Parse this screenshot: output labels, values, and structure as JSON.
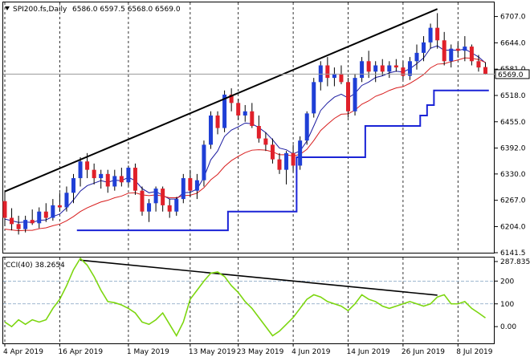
{
  "header": {
    "symbol": "SPI200.fs,Daily",
    "ohlc": "6586.0 6597.5 6568.0 6569.0",
    "marker_icon": "triangle-down-icon"
  },
  "indicator": {
    "label": "CCI(40) 38.2654"
  },
  "price_badge": "6569.0",
  "colors": {
    "bull": "#1f3fd6",
    "bear": "#e0202a",
    "ema_fast": "#1a1aa0",
    "ema_slow": "#d81e1e",
    "support": "#1a23d6",
    "trendline": "#000000",
    "cci": "#7cd60f"
  },
  "chart_data": [
    {
      "type": "candlestick",
      "title": "SPI200.fs,Daily",
      "ylim": [
        6141.5,
        6735
      ],
      "y_ticks": [
        "6707.0",
        "6644.0",
        "6581.0",
        "6518.0",
        "6455.0",
        "6392.0",
        "6330.0",
        "6267.0",
        "6204.0",
        "6141.5"
      ],
      "x_ticks": [
        "4 Apr 2019",
        "16 Apr 2019",
        "1 May 2019",
        "13 May 2019",
        "23 May 2019",
        "4 Jun 2019",
        "14 Jun 2019",
        "26 Jun 2019",
        "8 Jul 2019"
      ],
      "x_tick_index": [
        0,
        8,
        18,
        27,
        34,
        42,
        50,
        58,
        66
      ],
      "candles": [
        [
          6265,
          6290,
          6205,
          6225
        ],
        [
          6225,
          6248,
          6195,
          6210
        ],
        [
          6210,
          6230,
          6185,
          6198
        ],
        [
          6198,
          6230,
          6190,
          6220
        ],
        [
          6220,
          6245,
          6208,
          6212
        ],
        [
          6212,
          6250,
          6200,
          6240
        ],
        [
          6240,
          6260,
          6215,
          6225
        ],
        [
          6225,
          6270,
          6218,
          6255
        ],
        [
          6255,
          6285,
          6240,
          6250
        ],
        [
          6250,
          6300,
          6240,
          6285
        ],
        [
          6285,
          6330,
          6260,
          6320
        ],
        [
          6320,
          6370,
          6300,
          6360
        ],
        [
          6360,
          6380,
          6320,
          6340
        ],
        [
          6340,
          6355,
          6305,
          6320
        ],
        [
          6320,
          6340,
          6295,
          6330
        ],
        [
          6330,
          6340,
          6285,
          6300
        ],
        [
          6300,
          6340,
          6290,
          6325
        ],
        [
          6325,
          6345,
          6300,
          6310
        ],
        [
          6310,
          6350,
          6300,
          6345
        ],
        [
          6345,
          6355,
          6280,
          6290
        ],
        [
          6290,
          6300,
          6230,
          6240
        ],
        [
          6240,
          6270,
          6215,
          6260
        ],
        [
          6260,
          6300,
          6240,
          6295
        ],
        [
          6295,
          6300,
          6240,
          6255
        ],
        [
          6255,
          6270,
          6225,
          6240
        ],
        [
          6240,
          6275,
          6230,
          6270
        ],
        [
          6270,
          6330,
          6260,
          6320
        ],
        [
          6320,
          6340,
          6275,
          6290
        ],
        [
          6290,
          6330,
          6270,
          6315
        ],
        [
          6315,
          6410,
          6300,
          6400
        ],
        [
          6400,
          6480,
          6390,
          6470
        ],
        [
          6470,
          6480,
          6425,
          6440
        ],
        [
          6440,
          6530,
          6430,
          6520
        ],
        [
          6520,
          6535,
          6480,
          6500
        ],
        [
          6500,
          6510,
          6460,
          6470
        ],
        [
          6470,
          6495,
          6455,
          6480
        ],
        [
          6480,
          6500,
          6440,
          6445
        ],
        [
          6445,
          6470,
          6405,
          6415
        ],
        [
          6415,
          6430,
          6385,
          6400
        ],
        [
          6400,
          6415,
          6355,
          6365
        ],
        [
          6365,
          6380,
          6330,
          6340
        ],
        [
          6340,
          6385,
          6305,
          6380
        ],
        [
          6380,
          6400,
          6335,
          6350
        ],
        [
          6350,
          6420,
          6340,
          6410
        ],
        [
          6410,
          6480,
          6400,
          6475
        ],
        [
          6475,
          6560,
          6465,
          6550
        ],
        [
          6550,
          6600,
          6530,
          6590
        ],
        [
          6590,
          6610,
          6540,
          6560
        ],
        [
          6560,
          6585,
          6540,
          6570
        ],
        [
          6570,
          6590,
          6545,
          6550
        ],
        [
          6550,
          6560,
          6465,
          6480
        ],
        [
          6480,
          6570,
          6470,
          6560
        ],
        [
          6560,
          6610,
          6550,
          6600
        ],
        [
          6600,
          6625,
          6560,
          6575
        ],
        [
          6575,
          6600,
          6550,
          6590
        ],
        [
          6590,
          6605,
          6565,
          6575
        ],
        [
          6575,
          6600,
          6560,
          6590
        ],
        [
          6590,
          6605,
          6575,
          6585
        ],
        [
          6585,
          6600,
          6555,
          6565
        ],
        [
          6565,
          6610,
          6555,
          6600
        ],
        [
          6600,
          6640,
          6580,
          6620
        ],
        [
          6620,
          6660,
          6600,
          6645
        ],
        [
          6645,
          6690,
          6630,
          6680
        ],
        [
          6680,
          6715,
          6630,
          6650
        ],
        [
          6650,
          6670,
          6590,
          6600
        ],
        [
          6600,
          6640,
          6585,
          6630
        ],
        [
          6630,
          6645,
          6610,
          6625
        ],
        [
          6625,
          6660,
          6600,
          6635
        ],
        [
          6635,
          6640,
          6590,
          6600
        ],
        [
          6600,
          6615,
          6575,
          6585
        ],
        [
          6586,
          6597.5,
          6568,
          6569
        ]
      ],
      "series": [
        {
          "kind": "ema_fast",
          "values": [
            6222,
            6218,
            6214,
            6215,
            6214,
            6219,
            6220,
            6228,
            6234,
            6249,
            6268,
            6289,
            6302,
            6308,
            6314,
            6310,
            6315,
            6314,
            6322,
            6314,
            6295,
            6285,
            6288,
            6279,
            6270,
            6270,
            6285,
            6286,
            6294,
            6322,
            6364,
            6385,
            6420,
            6435,
            6443,
            6452,
            6450,
            6441,
            6429,
            6412,
            6392,
            6388,
            6378,
            6385,
            6409,
            6445,
            6482,
            6500,
            6514,
            6521,
            6512,
            6523,
            6542,
            6550,
            6561,
            6565,
            6572,
            6576,
            6574,
            6582,
            6594,
            6608,
            6631,
            6637,
            6626,
            6627,
            6626,
            6629,
            6620,
            6610,
            6596
          ]
        },
        {
          "kind": "ema_slow",
          "values": [
            6198,
            6196,
            6194,
            6195,
            6195,
            6199,
            6201,
            6206,
            6210,
            6218,
            6228,
            6240,
            6249,
            6256,
            6263,
            6267,
            6273,
            6277,
            6284,
            6285,
            6280,
            6278,
            6280,
            6277,
            6273,
            6273,
            6278,
            6279,
            6284,
            6297,
            6316,
            6329,
            6348,
            6362,
            6372,
            6381,
            6387,
            6388,
            6387,
            6383,
            6376,
            6376,
            6373,
            6377,
            6389,
            6410,
            6434,
            6449,
            6463,
            6473,
            6474,
            6483,
            6497,
            6505,
            6516,
            6522,
            6530,
            6536,
            6539,
            6547,
            6557,
            6568,
            6584,
            6593,
            6594,
            6599,
            6603,
            6608,
            6607,
            6604,
            6597
          ]
        },
        {
          "kind": "support_channel",
          "values": [
            null,
            null,
            null,
            null,
            null,
            null,
            null,
            null,
            null,
            null,
            null,
            6195,
            6195,
            6195,
            6195,
            6195,
            6195,
            6195,
            6195,
            6195,
            6195,
            6195,
            6195,
            6195,
            6195,
            6195,
            6195,
            6195,
            6195,
            6195,
            6195,
            6195,
            6195,
            6240,
            6240,
            6240,
            6240,
            6240,
            6240,
            6240,
            6240,
            6240,
            6240,
            6370,
            6370,
            6370,
            6370,
            6370,
            6370,
            6370,
            6370,
            6370,
            6370,
            6445,
            6445,
            6445,
            6445,
            6445,
            6445,
            6445,
            6445,
            6470,
            6495,
            6530,
            6530,
            6530,
            6530,
            6530,
            6530,
            6530,
            6530
          ]
        }
      ],
      "trendline": [
        [
          0,
          6288
        ],
        [
          63,
          6725
        ]
      ]
    },
    {
      "type": "line",
      "title": "CCI(40) 38.2654",
      "ylim": [
        -70,
        300
      ],
      "y_ticks": [
        "287.8357",
        "200",
        "100",
        "0.00"
      ],
      "reference_levels": [
        200,
        100
      ],
      "series": [
        {
          "name": "CCI(40)",
          "values": [
            20,
            0,
            30,
            10,
            30,
            20,
            30,
            80,
            120,
            180,
            250,
            300,
            270,
            220,
            160,
            110,
            105,
            95,
            80,
            60,
            20,
            10,
            30,
            60,
            10,
            -40,
            20,
            120,
            160,
            200,
            235,
            240,
            220,
            180,
            150,
            110,
            80,
            40,
            0,
            -40,
            -20,
            10,
            40,
            80,
            120,
            140,
            130,
            110,
            100,
            90,
            70,
            100,
            140,
            120,
            110,
            90,
            80,
            90,
            100,
            110,
            100,
            90,
            100,
            130,
            140,
            100,
            100,
            110,
            80,
            60,
            38.27
          ]
        }
      ],
      "trendline": [
        [
          11,
          292
        ],
        [
          63,
          138
        ]
      ]
    }
  ]
}
